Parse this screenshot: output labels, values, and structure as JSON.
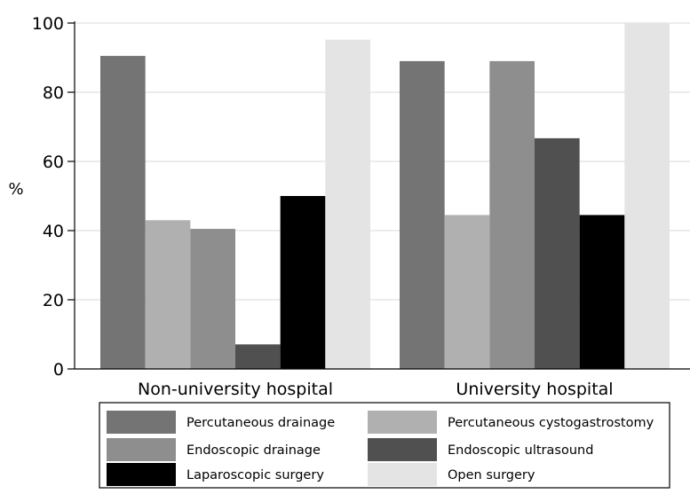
{
  "chart_data": {
    "type": "bar",
    "title": "",
    "xlabel": "",
    "ylabel": "%",
    "ylim": [
      0,
      100
    ],
    "yticks": [
      0,
      20,
      40,
      60,
      80,
      100
    ],
    "grid": true,
    "legend_position": "bottom",
    "categories": [
      "Non-university hospital",
      "University hospital"
    ],
    "series": [
      {
        "name": "Percutaneous drainage",
        "color": "#747474",
        "values": [
          90.5,
          89
        ]
      },
      {
        "name": "Percutaneous cystogastrostomy",
        "color": "#b0b0b0",
        "values": [
          43,
          44.5
        ]
      },
      {
        "name": "Endoscopic drainage",
        "color": "#8e8e8e",
        "values": [
          40.5,
          89
        ]
      },
      {
        "name": "Endoscopic ultrasound",
        "color": "#505050",
        "values": [
          7.1,
          66.7
        ]
      },
      {
        "name": "Laparoscopic surgery",
        "color": "#000000",
        "values": [
          50,
          44.5
        ]
      },
      {
        "name": "Open surgery",
        "color": "#e4e4e4",
        "values": [
          95.2,
          100
        ]
      }
    ]
  }
}
